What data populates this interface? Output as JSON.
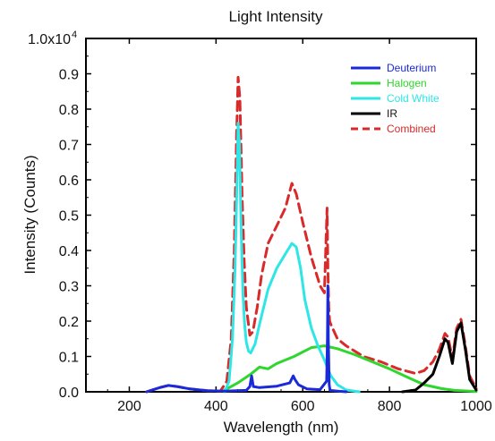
{
  "chart_data": {
    "type": "line",
    "title": "Light Intensity",
    "xlabel": "Wavelength  (nm)",
    "ylabel": "Intensity (Counts)",
    "xlim": [
      100,
      1000
    ],
    "ylim": [
      0,
      10000
    ],
    "x_ticks": [
      200,
      400,
      600,
      800,
      1000
    ],
    "x_tick_labels": [
      "200",
      "400",
      "600",
      "800",
      "1000"
    ],
    "y_ticks": [
      0,
      1000,
      2000,
      3000,
      4000,
      5000,
      6000,
      7000,
      8000,
      9000,
      10000
    ],
    "y_tick_labels": [
      "0.0",
      "0.1",
      "0.2",
      "0.3",
      "0.4",
      "0.5",
      "0.6",
      "0.7",
      "0.8",
      "0.9",
      "1.0x10"
    ],
    "y_top_exponent": "4",
    "grid": false,
    "legend_position": "top-right",
    "series": [
      {
        "name": "Deuterium",
        "color": "#1a2ad8",
        "dash": "solid",
        "x": [
          240,
          270,
          290,
          310,
          340,
          380,
          420,
          470,
          478,
          482,
          486,
          500,
          540,
          570,
          578,
          582,
          590,
          610,
          640,
          655,
          657,
          658,
          659,
          661,
          663,
          680,
          700
        ],
        "y": [
          0,
          120,
          180,
          150,
          80,
          30,
          20,
          40,
          150,
          450,
          150,
          120,
          160,
          250,
          450,
          350,
          200,
          80,
          60,
          300,
          1500,
          3000,
          1500,
          200,
          40,
          20,
          0
        ]
      },
      {
        "name": "Halogen",
        "color": "#2ed62e",
        "dash": "solid",
        "x": [
          420,
          450,
          480,
          500,
          520,
          540,
          580,
          620,
          650,
          680,
          720,
          760,
          800,
          840,
          880,
          920,
          950,
          1000
        ],
        "y": [
          50,
          250,
          500,
          700,
          650,
          800,
          1000,
          1250,
          1300,
          1220,
          1050,
          850,
          650,
          420,
          200,
          90,
          40,
          10
        ]
      },
      {
        "name": "Cold White",
        "color": "#2ee6e6",
        "dash": "solid",
        "x": [
          420,
          430,
          438,
          444,
          448,
          451,
          454,
          458,
          462,
          466,
          470,
          475,
          480,
          490,
          500,
          520,
          540,
          560,
          575,
          585,
          595,
          605,
          620,
          635,
          650,
          665,
          680,
          700,
          730
        ],
        "y": [
          0,
          300,
          1500,
          3500,
          5800,
          7600,
          7000,
          4600,
          2800,
          1900,
          1400,
          1150,
          1100,
          1350,
          1900,
          2900,
          3500,
          3900,
          4200,
          4100,
          3500,
          2600,
          1800,
          1300,
          900,
          450,
          200,
          50,
          0
        ]
      },
      {
        "name": "IR",
        "color": "#000000",
        "dash": "solid",
        "x": [
          830,
          860,
          880,
          900,
          915,
          928,
          935,
          945,
          955,
          965,
          975,
          985,
          1000
        ],
        "y": [
          0,
          50,
          250,
          500,
          1000,
          1500,
          1400,
          800,
          1700,
          1950,
          1200,
          350,
          50
        ]
      },
      {
        "name": "Combined",
        "color": "#d82a2a",
        "dash": "dashed",
        "x": [
          240,
          270,
          290,
          310,
          340,
          380,
          410,
          425,
          435,
          442,
          447,
          451,
          455,
          460,
          465,
          470,
          478,
          485,
          495,
          505,
          520,
          540,
          560,
          575,
          585,
          600,
          620,
          640,
          650,
          656,
          658,
          660,
          662,
          665,
          680,
          700,
          740,
          780,
          820,
          860,
          880,
          900,
          915,
          928,
          935,
          945,
          955,
          965,
          975,
          985,
          1000
        ],
        "y": [
          0,
          120,
          180,
          150,
          80,
          30,
          20,
          300,
          1500,
          4000,
          7000,
          8900,
          8300,
          5600,
          3700,
          2400,
          1600,
          1700,
          2400,
          3300,
          4200,
          4700,
          5200,
          5900,
          5600,
          4800,
          3800,
          3000,
          2800,
          5200,
          3500,
          2400,
          2000,
          1900,
          1500,
          1300,
          1000,
          850,
          650,
          520,
          600,
          850,
          1200,
          1650,
          1550,
          950,
          1800,
          2050,
          1300,
          450,
          100
        ]
      }
    ]
  }
}
